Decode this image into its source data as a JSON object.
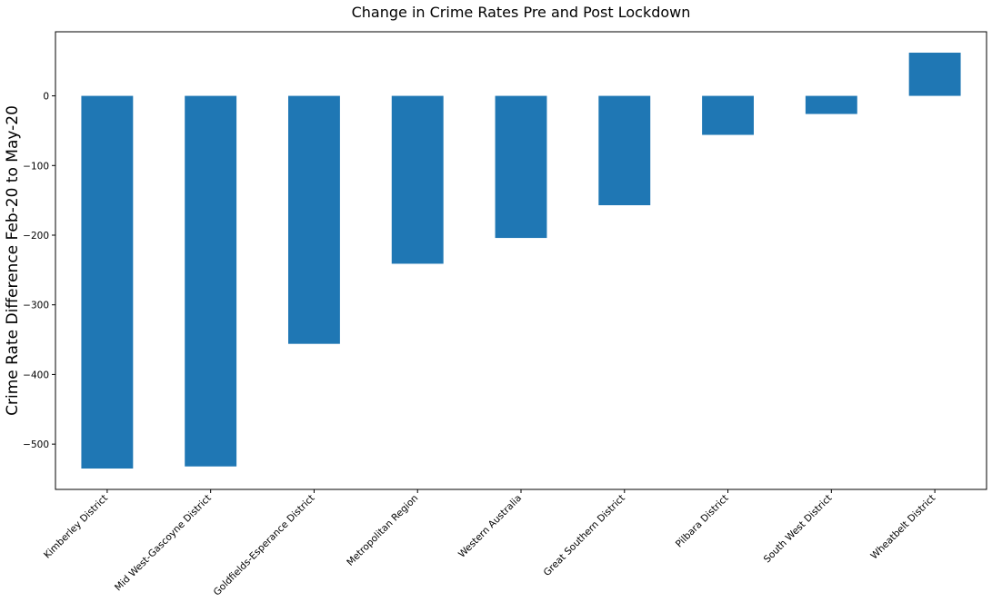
{
  "chart_data": {
    "type": "bar",
    "title": "Change in Crime Rates Pre and Post Lockdown",
    "xlabel": "",
    "ylabel": "Crime Rate Difference Feb-20 to May-20",
    "categories": [
      "Kimberley District",
      "Mid West-Gascoyne District",
      "Goldfields-Esperance District",
      "Metropolitan Region",
      "Western Australia",
      "Great Southern District",
      "Pilbara District",
      "South West District",
      "Wheatbelt District"
    ],
    "values": [
      -535,
      -532,
      -356,
      -241,
      -204,
      -157,
      -56,
      -26,
      62
    ],
    "ylim": [
      -565,
      92
    ],
    "yticks": [
      0,
      -100,
      -200,
      -300,
      -400,
      -500
    ],
    "ytick_labels": [
      "0",
      "−100",
      "−200",
      "−300",
      "−400",
      "−500"
    ],
    "bar_color": "#1f77b4",
    "grid": false,
    "legend": "none"
  }
}
